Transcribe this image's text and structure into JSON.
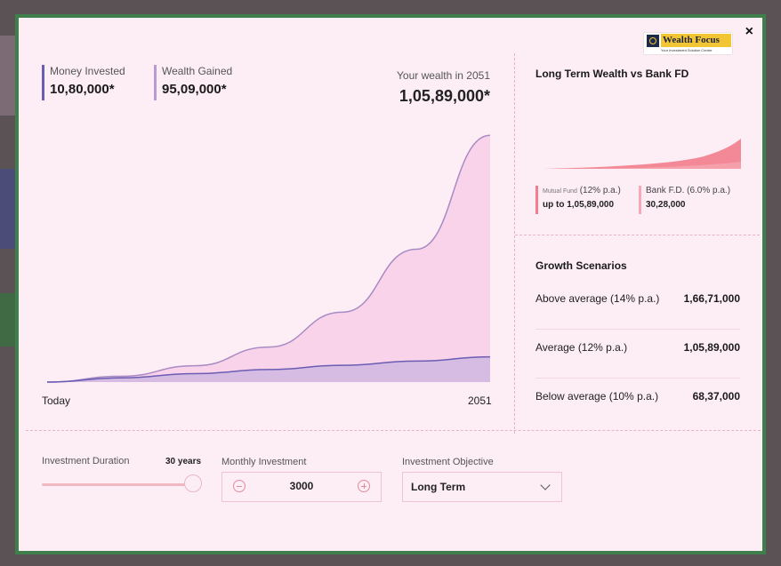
{
  "header": {
    "logo_name": "Wealth Focus",
    "logo_tagline": "Your Investment Solution Centre",
    "close_label": "×"
  },
  "summary": {
    "invested_label": "Money Invested",
    "invested_value": "10,80,000*",
    "gained_label": "Wealth Gained",
    "gained_value": "95,09,000*",
    "future_label": "Your wealth in 2051",
    "future_value": "1,05,89,000*"
  },
  "chart_data": {
    "type": "area",
    "x": [
      0,
      5,
      10,
      15,
      20,
      25,
      30
    ],
    "x_tick_labels": [
      "Today",
      "2051"
    ],
    "series": [
      {
        "values": [
          0,
          2.5,
          7.0,
          15.0,
          30.0,
          57.0,
          105.89
        ],
        "color": "#a88ac4"
      },
      {
        "values": [
          0,
          1.8,
          3.6,
          5.4,
          7.2,
          9.0,
          10.8
        ],
        "color": "#6a5db3"
      }
    ],
    "ylim": [
      0,
      106
    ],
    "grid": false
  },
  "comparison": {
    "title": "Long Term Wealth vs Bank FD",
    "mutual_fund": {
      "name": "Mutual Fund",
      "rate": "(12% p.a.)",
      "amount": "up to 1,05,89,000"
    },
    "bank_fd": {
      "name": "Bank F.D. (6.0% p.a.)",
      "amount": "30,28,000"
    },
    "colors": {
      "mutual_fund": "#f27d8c",
      "bank_fd": "#f7a9b5"
    }
  },
  "scenarios": {
    "title": "Growth Scenarios",
    "items": [
      {
        "label": "Above average (14% p.a.)",
        "value": "1,66,71,000"
      },
      {
        "label": "Average (12% p.a.)",
        "value": "1,05,89,000"
      },
      {
        "label": "Below average (10% p.a.)",
        "value": "68,37,000"
      }
    ]
  },
  "controls": {
    "duration_label": "Investment Duration",
    "duration_value": "30 years",
    "duration_fraction": 1.0,
    "monthly_label": "Monthly Investment",
    "monthly_value": "3000",
    "objective_label": "Investment Objective",
    "objective_value": "Long Term"
  },
  "colors": {
    "modal_border": "#3f7f4b",
    "accent_invested": "#6a5db3",
    "accent_gained": "#b89bd0"
  }
}
